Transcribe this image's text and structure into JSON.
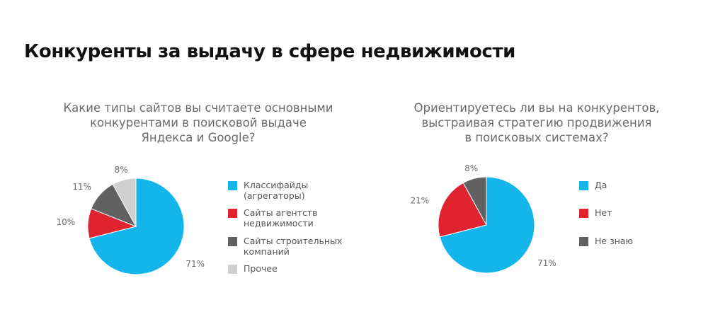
{
  "page": {
    "title": "Конкуренты за выдачу в сфере недвижимости"
  },
  "colors": {
    "blue": "#13b5ea",
    "red": "#e0242f",
    "dark_gray": "#616161",
    "light_gray": "#cfcfcf"
  },
  "chart_data": [
    {
      "type": "pie",
      "question_lines": [
        "Какие типы сайтов вы считаете основными",
        "конкурентами в поисковой выдаче",
        "Яндекса и Google?"
      ],
      "slices": [
        {
          "label_lines": [
            "Классифайды",
            "(агрегаторы)"
          ],
          "value": 71,
          "value_label": "71%",
          "color": "#13b5ea"
        },
        {
          "label_lines": [
            "Сайты агентств",
            "недвижимости"
          ],
          "value": 10,
          "value_label": "10%",
          "color": "#e0242f"
        },
        {
          "label_lines": [
            "Сайты строительных",
            "компаний"
          ],
          "value": 11,
          "value_label": "11%",
          "color": "#616161"
        },
        {
          "label_lines": [
            "Прочее"
          ],
          "value": 8,
          "value_label": "8%",
          "color": "#cfcfcf"
        }
      ],
      "legend_position": "right"
    },
    {
      "type": "pie",
      "question_lines": [
        "Ориентируетесь ли вы на конкурентов,",
        "выстраивая стратегию продвижения",
        "в поисковых системах?"
      ],
      "slices": [
        {
          "label_lines": [
            "Да"
          ],
          "value": 71,
          "value_label": "71%",
          "color": "#13b5ea"
        },
        {
          "label_lines": [
            "Нет"
          ],
          "value": 21,
          "value_label": "21%",
          "color": "#e0242f"
        },
        {
          "label_lines": [
            "Не знаю"
          ],
          "value": 8,
          "value_label": "8%",
          "color": "#616161"
        }
      ],
      "legend_position": "right"
    }
  ]
}
